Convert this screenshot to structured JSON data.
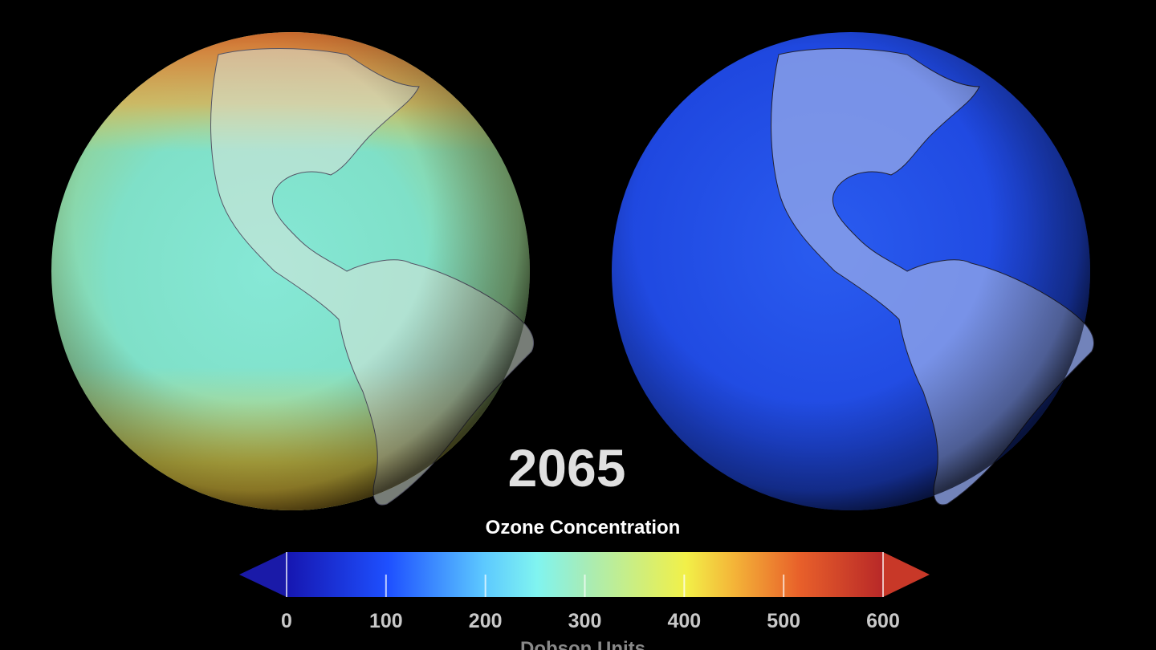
{
  "year": "2065",
  "colorbar": {
    "title": "Ozone Concentration",
    "lim": [
      0,
      600
    ],
    "ticks": [
      0,
      100,
      200,
      300,
      400,
      500,
      600
    ],
    "unit_label": "Dobson Units"
  }
}
